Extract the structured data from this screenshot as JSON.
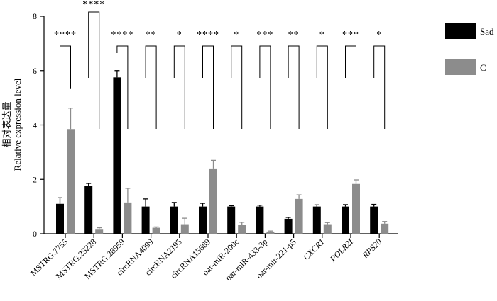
{
  "chart_data": {
    "type": "bar",
    "ylabel_cn": "相对表达量",
    "ylabel": "Relative expression level",
    "ylim": [
      0,
      8
    ],
    "yticks": [
      0,
      2,
      4,
      6,
      8
    ],
    "categories": [
      {
        "label": "MSTRG.7755",
        "italic": false
      },
      {
        "label": "MSTRG.25228",
        "italic": false
      },
      {
        "label": "MSTRG.28959",
        "italic": false
      },
      {
        "label": "circRNA4099",
        "italic": false
      },
      {
        "label": "circRNA2195",
        "italic": false
      },
      {
        "label": "circRNA15689",
        "italic": false
      },
      {
        "label": "oar-miR-200c",
        "italic": false
      },
      {
        "label": "oar-miR-433-3p",
        "italic": false
      },
      {
        "label": "oar-mir-221-p5",
        "italic": false
      },
      {
        "label": "CXCR1",
        "italic": true
      },
      {
        "label": "POLR2I",
        "italic": true
      },
      {
        "label": "RPS20",
        "italic": true
      }
    ],
    "series": [
      {
        "name": "Sad",
        "color": "#000000",
        "values": [
          1.1,
          1.75,
          5.75,
          1.0,
          1.0,
          1.0,
          1.0,
          1.0,
          0.55,
          1.0,
          1.0,
          1.0
        ],
        "errors": [
          0.22,
          0.1,
          0.25,
          0.28,
          0.15,
          0.12,
          0.03,
          0.05,
          0.05,
          0.06,
          0.07,
          0.08
        ]
      },
      {
        "name": "C",
        "color": "#8c8c8c",
        "values": [
          3.85,
          0.15,
          1.15,
          0.22,
          0.35,
          2.4,
          0.32,
          0.08,
          1.28,
          0.35,
          1.83,
          0.37
        ],
        "errors": [
          0.77,
          0.07,
          0.52,
          0.03,
          0.22,
          0.3,
          0.1,
          0.02,
          0.15,
          0.06,
          0.15,
          0.08
        ]
      }
    ],
    "significance": [
      "****",
      "****",
      "****",
      "**",
      "*",
      "****",
      "*",
      "***",
      "**",
      "*",
      "***",
      "*"
    ],
    "legend_position": "top-right",
    "grid": false
  }
}
